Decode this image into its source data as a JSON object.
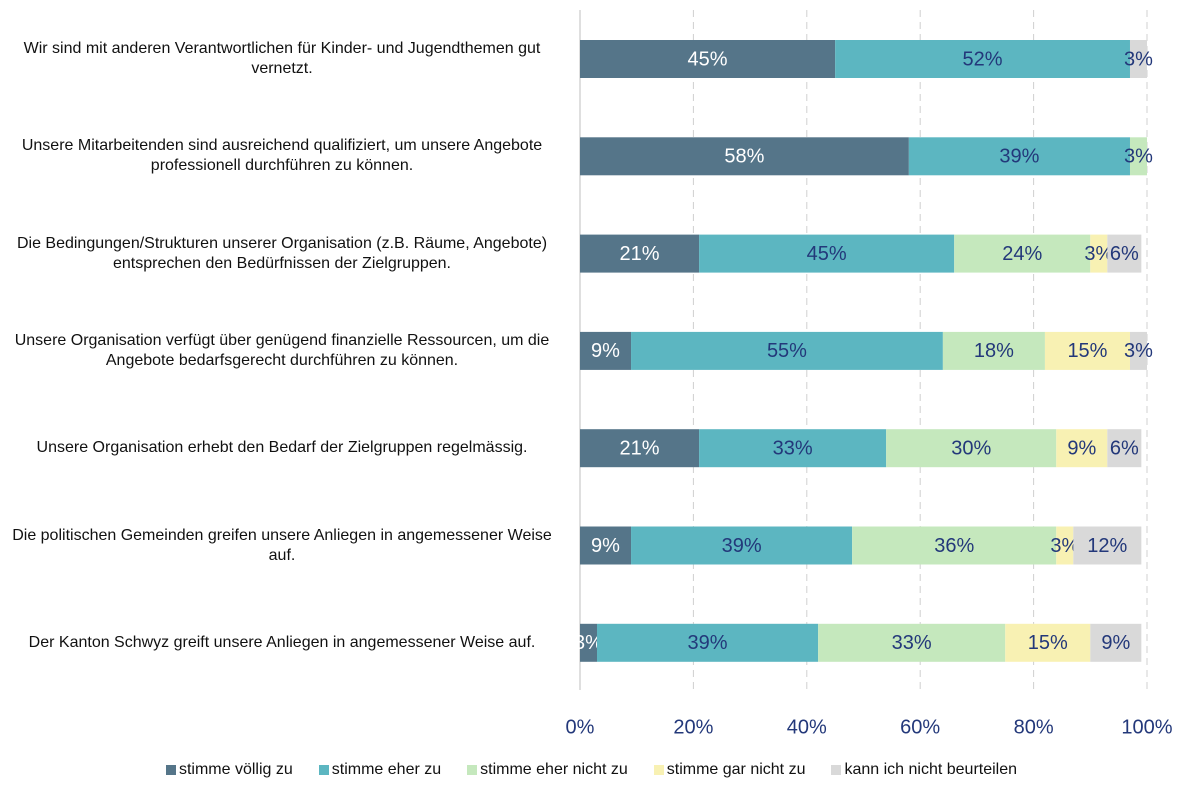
{
  "chart_data": {
    "type": "stacked-barh",
    "categories": [
      "Wir sind mit anderen Verantwortlichen für Kinder- und Jugendthemen gut vernetzt.",
      "Unsere Mitarbeitenden sind ausreichend qualifiziert, um unsere Angebote professionell durchführen zu können.",
      "Die Bedingungen/Strukturen unserer Organisation (z.B. Räume, Angebote) entsprechen den Bedürfnissen der Zielgruppen.",
      "Unsere Organisation verfügt über genügend finanzielle Ressourcen, um die Angebote bedarfsgerecht durchführen zu können.",
      "Unsere Organisation erhebt den Bedarf der Zielgruppen regelmässig.",
      "Die politischen Gemeinden greifen unsere Anliegen in angemessener Weise auf.",
      "Der Kanton Schwyz greift unsere Anliegen in angemessener Weise auf."
    ],
    "series": [
      {
        "name": "stimme völlig zu",
        "color": "#557589",
        "label_color": "#ffffff",
        "values": [
          45,
          58,
          21,
          9,
          21,
          9,
          3
        ],
        "value_labels": [
          "45%",
          "58%",
          "21%",
          "9%",
          "21%",
          "9%",
          "3%"
        ]
      },
      {
        "name": "stimme eher zu",
        "color": "#5cb6c1",
        "label_color": "#23387a",
        "values": [
          52,
          39,
          45,
          55,
          33,
          39,
          39
        ],
        "value_labels": [
          "52%",
          "39%",
          "45%",
          "55%",
          "33%",
          "39%",
          "39%"
        ]
      },
      {
        "name": "stimme eher nicht zu",
        "color": "#c5e8bd",
        "label_color": "#23387a",
        "values": [
          null,
          3,
          24,
          18,
          30,
          36,
          33
        ],
        "value_labels": [
          null,
          "3%",
          "24%",
          "18%",
          "30%",
          "36%",
          "33%"
        ]
      },
      {
        "name": "stimme gar nicht zu",
        "color": "#f8f1b3",
        "label_color": "#23387a",
        "values": [
          null,
          null,
          3,
          15,
          9,
          3,
          15
        ],
        "value_labels": [
          null,
          null,
          "3%",
          "15%",
          "9%",
          "3%",
          "15%"
        ]
      },
      {
        "name": "kann ich nicht beurteilen",
        "color": "#d9d9d9",
        "label_color": "#23387a",
        "values": [
          3,
          null,
          6,
          3,
          6,
          12,
          9
        ],
        "value_labels": [
          "3%",
          null,
          "6%",
          "3%",
          "6%",
          "12%",
          "9%"
        ]
      }
    ],
    "xlim": [
      0,
      100
    ],
    "xticks": [
      {
        "value": 0,
        "label": "0%"
      },
      {
        "value": 20,
        "label": "20%"
      },
      {
        "value": 40,
        "label": "40%"
      },
      {
        "value": 60,
        "label": "60%"
      },
      {
        "value": 80,
        "label": "80%"
      },
      {
        "value": 100,
        "label": "100%"
      }
    ],
    "grid": true
  }
}
